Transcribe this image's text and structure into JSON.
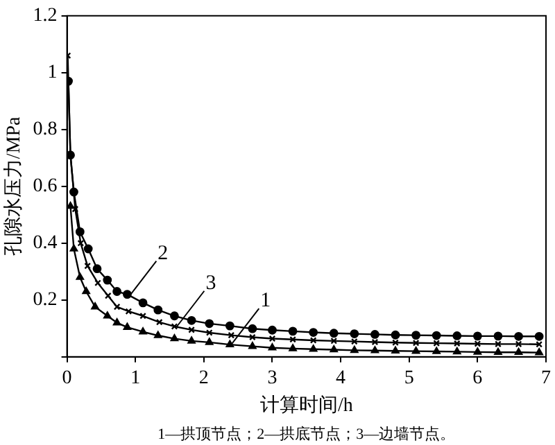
{
  "chart_data": {
    "type": "line",
    "xlabel": "计算时间/h",
    "ylabel": "孔隙水压力/MPa",
    "xlim": [
      0,
      7
    ],
    "xticks": [
      0,
      1,
      2,
      3,
      4,
      5,
      6,
      7
    ],
    "ylim": [
      0,
      1.2
    ],
    "yticks": [
      {
        "value": 0,
        "label": null
      },
      0.2,
      0.4,
      0.6,
      0.8,
      1.0,
      1.2
    ],
    "grid": false,
    "legend": false,
    "line_style": "solid",
    "series": [
      {
        "color": "#000000",
        "marker": "triangle",
        "x": [
          0.05,
          0.1,
          0.19,
          0.28,
          0.41,
          0.59,
          0.73,
          0.88,
          1.11,
          1.33,
          1.57,
          1.82,
          2.08,
          2.38,
          2.71,
          3.0,
          3.3,
          3.6,
          3.9,
          4.2,
          4.5,
          4.8,
          5.1,
          5.4,
          5.7,
          6.0,
          6.3,
          6.6,
          6.9
        ],
        "values": [
          0.53,
          0.38,
          0.28,
          0.23,
          0.176,
          0.144,
          0.12,
          0.104,
          0.088,
          0.075,
          0.064,
          0.056,
          0.051,
          0.043,
          0.037,
          0.032,
          0.029,
          0.027,
          0.025,
          0.023,
          0.022,
          0.021,
          0.02,
          0.019,
          0.018,
          0.017,
          0.016,
          0.016,
          0.015
        ]
      },
      {
        "color": "#000000",
        "marker": "circle",
        "x": [
          0.02,
          0.05,
          0.1,
          0.19,
          0.31,
          0.44,
          0.59,
          0.73,
          0.88,
          1.11,
          1.33,
          1.57,
          1.82,
          2.08,
          2.38,
          2.71,
          3.0,
          3.3,
          3.6,
          3.9,
          4.2,
          4.5,
          4.8,
          5.1,
          5.4,
          5.7,
          6.0,
          6.3,
          6.6,
          6.9
        ],
        "values": [
          0.97,
          0.71,
          0.58,
          0.44,
          0.38,
          0.31,
          0.27,
          0.23,
          0.22,
          0.19,
          0.165,
          0.144,
          0.128,
          0.117,
          0.109,
          0.099,
          0.094,
          0.09,
          0.086,
          0.083,
          0.081,
          0.079,
          0.077,
          0.076,
          0.075,
          0.074,
          0.073,
          0.073,
          0.072,
          0.072
        ]
      },
      {
        "color": "#000000",
        "marker": "cross",
        "x": [
          0.01,
          0.05,
          0.12,
          0.2,
          0.3,
          0.45,
          0.6,
          0.73,
          0.9,
          1.11,
          1.35,
          1.57,
          1.82,
          2.08,
          2.4,
          2.71,
          3.0,
          3.3,
          3.6,
          3.9,
          4.2,
          4.5,
          4.8,
          5.1,
          5.4,
          5.7,
          6.0,
          6.3,
          6.6,
          6.9
        ],
        "values": [
          1.06,
          0.71,
          0.52,
          0.4,
          0.32,
          0.26,
          0.215,
          0.176,
          0.16,
          0.144,
          0.122,
          0.107,
          0.095,
          0.085,
          0.076,
          0.069,
          0.064,
          0.061,
          0.058,
          0.056,
          0.054,
          0.052,
          0.05,
          0.049,
          0.048,
          0.047,
          0.046,
          0.045,
          0.045,
          0.044
        ]
      }
    ],
    "annotations": [
      {
        "text": "2",
        "x": 0.9,
        "y": 0.21
      },
      {
        "text": "3",
        "x": 1.6,
        "y": 0.105
      },
      {
        "text": "1",
        "x": 2.4,
        "y": 0.043
      },
      "1—拱顶节点；2—拱底节点；3—边墙节点。"
    ]
  }
}
